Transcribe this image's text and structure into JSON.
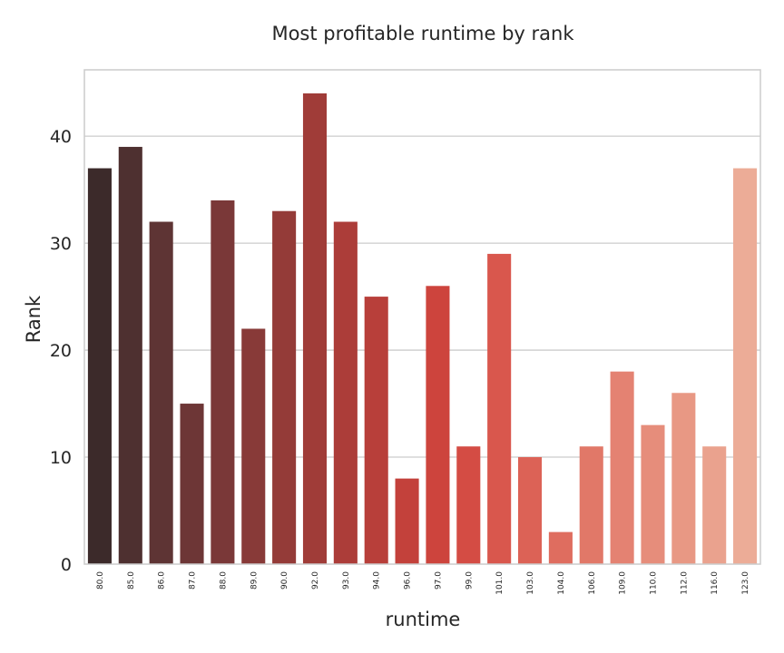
{
  "chart_data": {
    "type": "bar",
    "title": "Most profitable runtime by rank",
    "xlabel": "runtime",
    "ylabel": "Rank",
    "categories": [
      "80.0",
      "85.0",
      "86.0",
      "87.0",
      "88.0",
      "89.0",
      "90.0",
      "92.0",
      "93.0",
      "94.0",
      "96.0",
      "97.0",
      "99.0",
      "101.0",
      "103.0",
      "104.0",
      "106.0",
      "109.0",
      "110.0",
      "112.0",
      "116.0",
      "123.0"
    ],
    "values": [
      37,
      39,
      32,
      15,
      34,
      22,
      33,
      44,
      32,
      25,
      8,
      26,
      11,
      29,
      10,
      3,
      11,
      18,
      13,
      16,
      11,
      37
    ],
    "colors": [
      "#3c2a2a",
      "#4e3030",
      "#5e3434",
      "#6d3636",
      "#7a3838",
      "#883a38",
      "#943b38",
      "#a03c38",
      "#ac3d39",
      "#b83f3a",
      "#c3413b",
      "#cd443d",
      "#d44c44",
      "#d9574d",
      "#dc6256",
      "#df6d5f",
      "#e17868",
      "#e48272",
      "#e68d7b",
      "#e89884",
      "#eaa28e",
      "#ecac97"
    ],
    "y_ticks": [
      0,
      10,
      20,
      30,
      40
    ],
    "ylim": [
      0,
      46.2
    ],
    "grid": "horizontal"
  }
}
